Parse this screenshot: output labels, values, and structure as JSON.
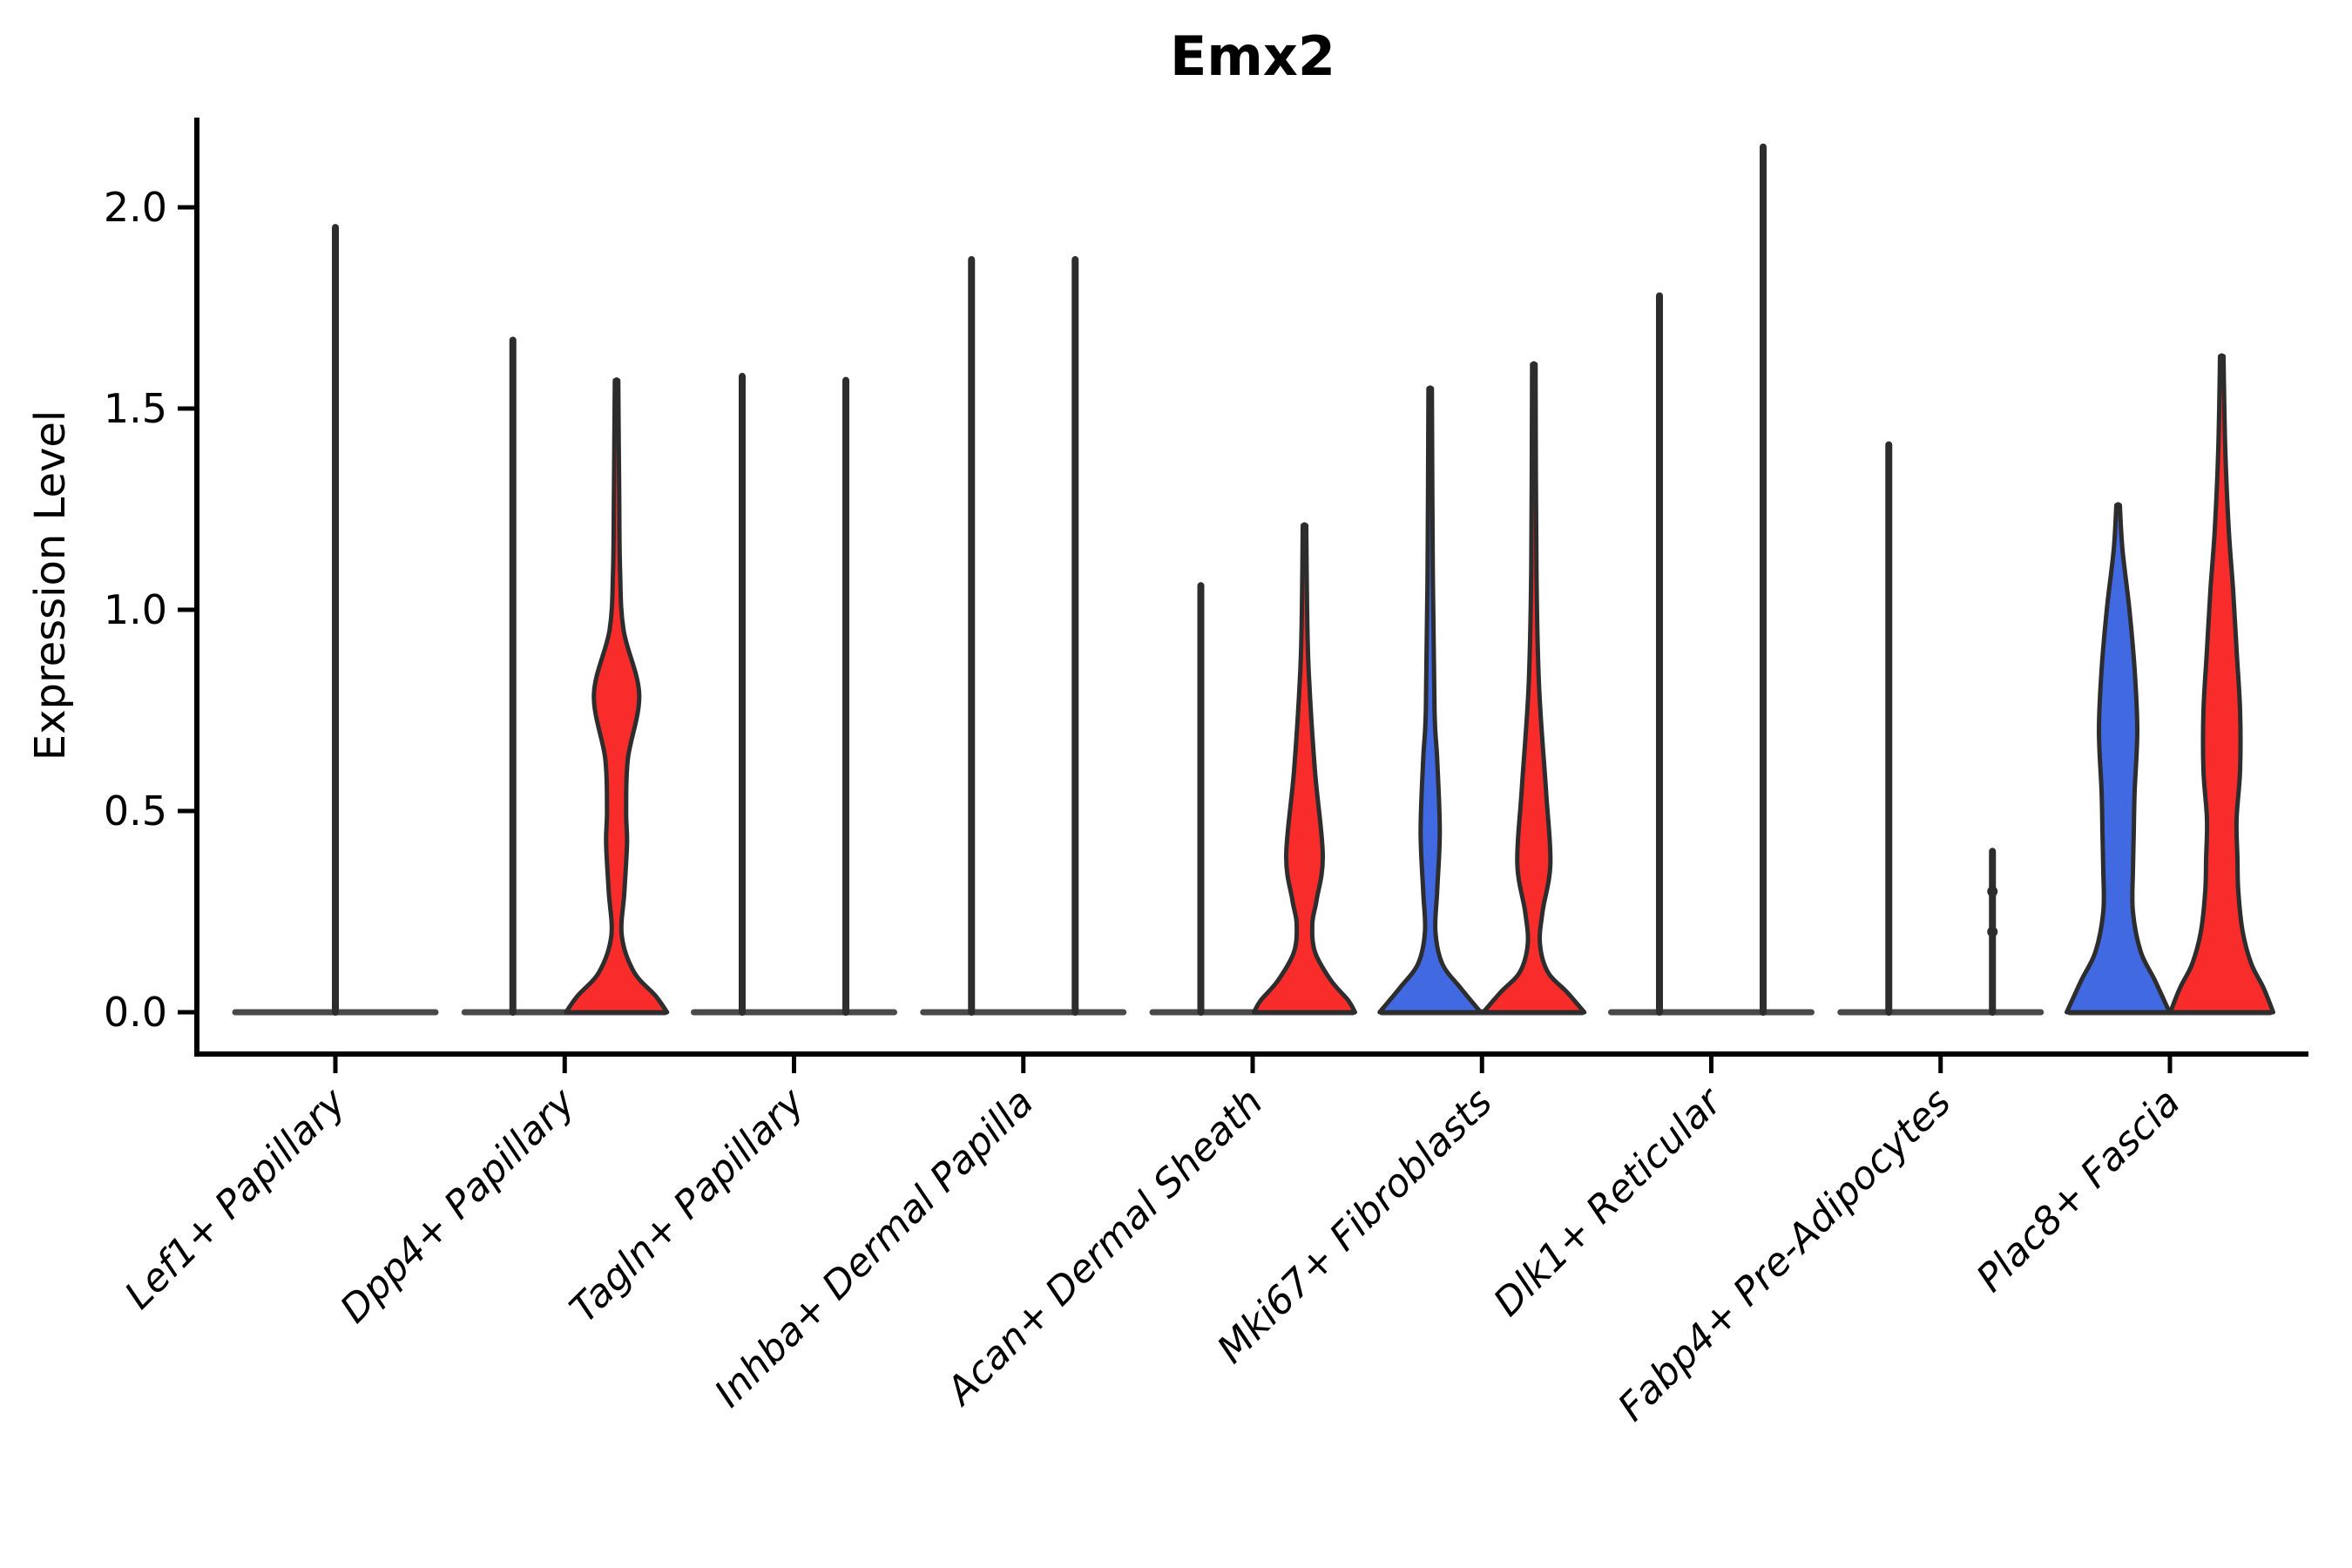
{
  "title": "Emx2",
  "chart_data": {
    "type": "violin",
    "title": "Emx2",
    "ylabel": "Expression Level",
    "xlabel": "",
    "grid": false,
    "legend_position": "none",
    "ylim": [
      -0.104,
      2.223
    ],
    "ytick_labels": [
      "0.0",
      "0.5",
      "1.0",
      "1.5",
      "2.0"
    ],
    "ytick_values": [
      0.0,
      0.5,
      1.0,
      1.5,
      2.0
    ],
    "categories": [
      "Lef1+ Papillary",
      "Dpp4+ Papillary",
      "Tagln+ Papillary",
      "Inhba+ Dermal Papilla",
      "Acan+ Dermal Sheath",
      "Mki67+ Fibroblasts",
      "Dlk1+ Reticular",
      "Fabp4+ Pre-Adipocytes",
      "Plac8+ Fascia"
    ],
    "colors": {
      "blue": "#4169E1",
      "red": "#F92C2C",
      "edge": "#2D2D2D",
      "baseline": "#3A3A3A"
    },
    "groups": [
      {
        "category": "Lef1+ Papillary",
        "violins": [
          {
            "side": "left",
            "color": "none",
            "offset": 0,
            "max": 1.95,
            "shape": "line"
          },
          {
            "side": "right",
            "color": "none",
            "offset": 59.5,
            "max": 0,
            "shape": "flat"
          }
        ]
      },
      {
        "category": "Dpp4+ Papillary",
        "violins": [
          {
            "side": "left",
            "color": "none",
            "offset": -59.5,
            "max": 1.67,
            "shape": "line"
          },
          {
            "side": "right",
            "color": "red",
            "offset": 59.5,
            "max": 1.57,
            "shape": "body",
            "profile": [
              [
                1.57,
                2
              ],
              [
                1.3,
                3
              ],
              [
                1.1,
                4
              ],
              [
                0.95,
                8
              ],
              [
                0.79,
                26
              ],
              [
                0.63,
                13
              ],
              [
                0.5,
                11
              ],
              [
                0.42,
                12
              ],
              [
                0.3,
                9
              ],
              [
                0.19,
                6
              ],
              [
                0.1,
                20
              ],
              [
                0.04,
                45
              ],
              [
                0,
                58
              ]
            ]
          }
        ]
      },
      {
        "category": "Tagln+ Papillary",
        "violins": [
          {
            "side": "left",
            "color": "none",
            "offset": -59.5,
            "max": 1.58,
            "shape": "line"
          },
          {
            "side": "right",
            "color": "none",
            "offset": 59.5,
            "max": 1.57,
            "shape": "line"
          }
        ]
      },
      {
        "category": "Inhba+ Dermal Papilla",
        "violins": [
          {
            "side": "left",
            "color": "none",
            "offset": -59.5,
            "max": 1.87,
            "shape": "line"
          },
          {
            "side": "right",
            "color": "none",
            "offset": 59.5,
            "max": 1.87,
            "shape": "line"
          }
        ]
      },
      {
        "category": "Acan+ Dermal Sheath",
        "violins": [
          {
            "side": "left",
            "color": "none",
            "offset": -59.5,
            "max": 1.06,
            "shape": "line"
          },
          {
            "side": "right",
            "color": "red",
            "offset": 59.5,
            "max": 1.21,
            "shape": "body",
            "profile": [
              [
                1.21,
                2
              ],
              [
                1.0,
                3
              ],
              [
                0.84,
                5
              ],
              [
                0.6,
                12
              ],
              [
                0.39,
                21
              ],
              [
                0.28,
                14
              ],
              [
                0.22,
                9
              ],
              [
                0.15,
                12
              ],
              [
                0.08,
                30
              ],
              [
                0.03,
                50
              ],
              [
                0,
                58
              ]
            ]
          }
        ]
      },
      {
        "category": "Mki67+ Fibroblasts",
        "violins": [
          {
            "side": "left",
            "color": "blue",
            "offset": -59.5,
            "max": 1.55,
            "shape": "body",
            "profile": [
              [
                1.55,
                2
              ],
              [
                1.1,
                3
              ],
              [
                0.75,
                5
              ],
              [
                0.63,
                8
              ],
              [
                0.45,
                11
              ],
              [
                0.3,
                8
              ],
              [
                0.2,
                6
              ],
              [
                0.12,
                14
              ],
              [
                0.06,
                35
              ],
              [
                0,
                58
              ]
            ]
          },
          {
            "side": "right",
            "color": "red",
            "offset": 59.5,
            "max": 1.61,
            "shape": "body",
            "profile": [
              [
                1.61,
                2
              ],
              [
                1.1,
                3
              ],
              [
                0.81,
                6
              ],
              [
                0.55,
                14
              ],
              [
                0.37,
                19
              ],
              [
                0.25,
                10
              ],
              [
                0.17,
                7
              ],
              [
                0.1,
                16
              ],
              [
                0.05,
                38
              ],
              [
                0,
                58
              ]
            ]
          }
        ]
      },
      {
        "category": "Dlk1+ Reticular",
        "violins": [
          {
            "side": "left",
            "color": "none",
            "offset": -59.5,
            "max": 1.78,
            "shape": "line"
          },
          {
            "side": "right",
            "color": "none",
            "offset": 59.5,
            "max": 2.15,
            "shape": "line"
          }
        ]
      },
      {
        "category": "Fabp4+ Pre-Adipocytes",
        "violins": [
          {
            "side": "left",
            "color": "none",
            "offset": -59.5,
            "max": 1.41,
            "shape": "line"
          },
          {
            "side": "right",
            "color": "none",
            "offset": 59.5,
            "max": 0.4,
            "shape": "line",
            "dots": [
              0.3,
              0.2
            ]
          }
        ]
      },
      {
        "category": "Plac8+ Fascia",
        "violins": [
          {
            "side": "left",
            "color": "blue",
            "offset": -59.5,
            "max": 1.26,
            "shape": "body",
            "profile": [
              [
                1.26,
                2
              ],
              [
                1.15,
                5
              ],
              [
                1.0,
                13
              ],
              [
                0.85,
                19
              ],
              [
                0.7,
                22
              ],
              [
                0.55,
                19
              ],
              [
                0.45,
                18
              ],
              [
                0.35,
                17
              ],
              [
                0.25,
                17
              ],
              [
                0.15,
                26
              ],
              [
                0.08,
                42
              ],
              [
                0,
                59
              ]
            ]
          },
          {
            "side": "right",
            "color": "red",
            "offset": 59.5,
            "max": 1.63,
            "shape": "body",
            "profile": [
              [
                1.63,
                2
              ],
              [
                1.4,
                4
              ],
              [
                1.2,
                8
              ],
              [
                1.05,
                13
              ],
              [
                0.9,
                17
              ],
              [
                0.75,
                21
              ],
              [
                0.6,
                21
              ],
              [
                0.48,
                17
              ],
              [
                0.38,
                18
              ],
              [
                0.3,
                19
              ],
              [
                0.2,
                24
              ],
              [
                0.12,
                34
              ],
              [
                0.06,
                48
              ],
              [
                0,
                59
              ]
            ]
          }
        ]
      }
    ]
  }
}
